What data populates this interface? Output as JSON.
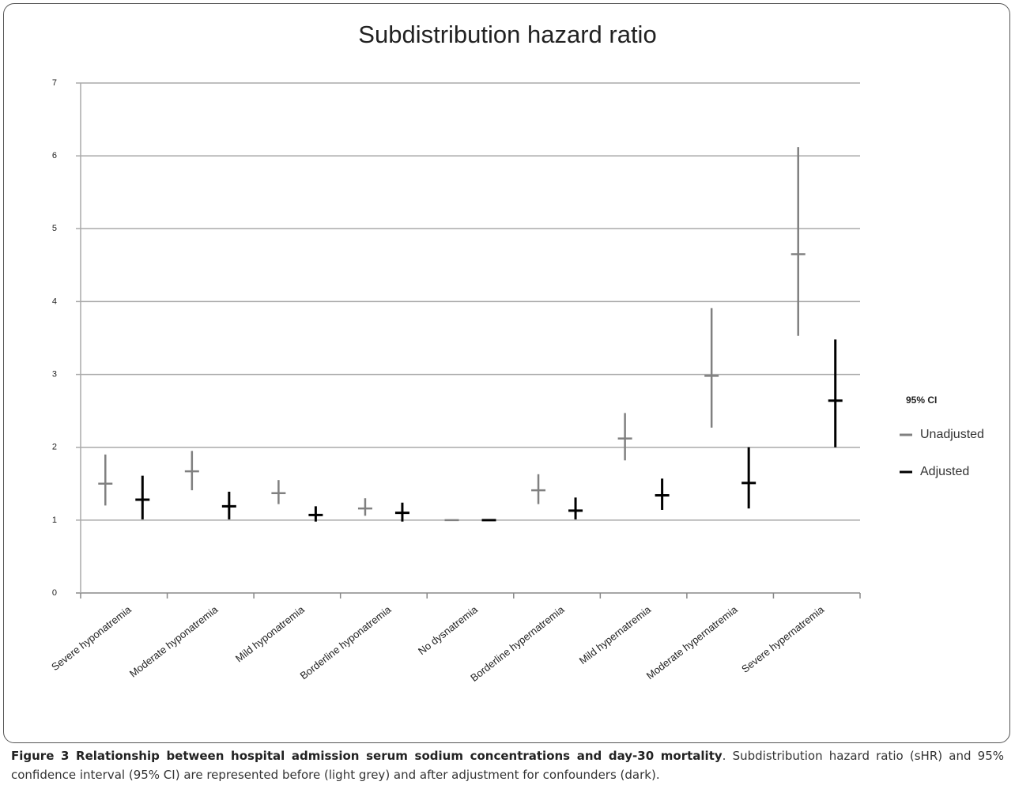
{
  "chart_data": {
    "type": "errorbar",
    "title": "Subdistribution hazard ratio",
    "categories": [
      "Severe hyponatremia",
      "Moderate hyponatremia",
      "Mild hyponatremia",
      "Borderline hyponatremia",
      "No dysnatremia",
      "Borderline hypernatremia",
      "Mild hypernatremia",
      "Moderate hypernatremia",
      "Severe hypernatremia"
    ],
    "series": [
      {
        "name": "Unadjusted",
        "color": "#808080",
        "values": [
          1.5,
          1.67,
          1.37,
          1.16,
          1,
          1.41,
          2.12,
          2.98,
          4.65
        ],
        "low": [
          1.2,
          1.41,
          1.22,
          1.06,
          1,
          1.22,
          1.82,
          2.27,
          3.53
        ],
        "high": [
          1.9,
          1.95,
          1.55,
          1.3,
          1,
          1.63,
          2.47,
          3.91,
          6.12
        ]
      },
      {
        "name": "Adjusted",
        "color": "#000000",
        "values": [
          1.28,
          1.19,
          1.07,
          1.1,
          1,
          1.13,
          1.34,
          1.51,
          2.64
        ],
        "low": [
          1.01,
          1.01,
          0.98,
          0.98,
          1,
          1.01,
          1.14,
          1.16,
          2.0
        ],
        "high": [
          1.61,
          1.39,
          1.19,
          1.24,
          1,
          1.31,
          1.57,
          2.0,
          3.48
        ]
      }
    ],
    "legend_title": "95% CI",
    "ylim": [
      0,
      7
    ],
    "yticks": [
      0,
      1,
      2,
      3,
      4,
      5,
      6,
      7
    ],
    "grid": true,
    "legend": "right"
  },
  "caption": {
    "title": "Figure 3 Relationship between hospital admission serum sodium concentrations and day-30 mortality",
    "text": ". Subdistribution hazard ratio (sHR) and 95% confidence interval (95% CI) are represented before (light grey) and after adjustment for confounders (dark)."
  }
}
